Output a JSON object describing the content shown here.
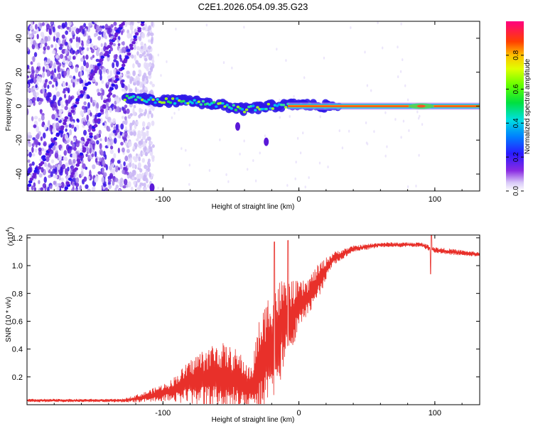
{
  "title": "C2E1.2026.054.09.35.G23",
  "chart_data": [
    {
      "type": "heatmap",
      "title": "C2E1.2026.054.09.35.G23",
      "xlabel": "Height of straight line (km)",
      "ylabel": "Frequency (Hz)",
      "xlim": [
        -200,
        133
      ],
      "ylim": [
        -50,
        50
      ],
      "xticks": [
        -100,
        0,
        100
      ],
      "xtick_labels": [
        "-100",
        "0",
        "100"
      ],
      "yticks": [
        -40,
        -20,
        0,
        20,
        40
      ],
      "ytick_labels": [
        "-40",
        "-20",
        "0",
        "20",
        "40"
      ],
      "colorbar": {
        "label": "Normalized spectral amplitude",
        "range": [
          0,
          1
        ],
        "ticks": [
          0.0,
          0.2,
          0.4,
          0.6,
          0.8
        ],
        "tick_labels": [
          "0.0",
          "0.2",
          "0.4",
          "0.6",
          "0.8"
        ]
      },
      "features": {
        "carrier_line": {
          "frequency_hz": 0,
          "start_km": -128,
          "end_km": 133
        },
        "diagonal_streaks": [
          {
            "from_km": -200,
            "to_km": -123,
            "from_hz": -48,
            "to_hz": 58
          },
          {
            "from_km": -178,
            "to_km": -110,
            "from_hz": -60,
            "to_hz": 58
          }
        ],
        "noise_region_km": [
          -200,
          -107
        ],
        "satellite_blobs": [
          {
            "km": -45,
            "hz": -12
          },
          {
            "km": -24,
            "hz": -21
          },
          {
            "km": -108,
            "hz": -48
          }
        ],
        "spectral_trace": [
          {
            "km": -128,
            "hz": 5
          },
          {
            "km": -100,
            "hz": 3
          },
          {
            "km": -80,
            "hz": 3
          },
          {
            "km": -60,
            "hz": 1
          },
          {
            "km": -40,
            "hz": -2
          },
          {
            "km": -20,
            "hz": 0
          },
          {
            "km": 0,
            "hz": 1
          },
          {
            "km": 20,
            "hz": 0
          },
          {
            "km": 133,
            "hz": 0
          }
        ]
      }
    },
    {
      "type": "line",
      "xlabel": "Height of straight line (km)",
      "ylabel": "SNR (10 * v/v)",
      "scale_label": "(x10",
      "scale_exponent": "4",
      "xlim": [
        -200,
        133
      ],
      "ylim": [
        0,
        1.22
      ],
      "xticks": [
        -100,
        0,
        100
      ],
      "xtick_labels": [
        "-100",
        "0",
        "100"
      ],
      "yticks": [
        0.2,
        0.4,
        0.6,
        0.8,
        1.0,
        1.2
      ],
      "ytick_labels": [
        "0.2",
        "0.4",
        "0.6",
        "0.8",
        "1.0",
        "1.2"
      ],
      "color": "#e8302a",
      "envelope": [
        {
          "km": -200,
          "mean": 0.03,
          "spread": 0.01
        },
        {
          "km": -130,
          "mean": 0.03,
          "spread": 0.01
        },
        {
          "km": -115,
          "mean": 0.05,
          "spread": 0.03
        },
        {
          "km": -95,
          "mean": 0.1,
          "spread": 0.06
        },
        {
          "km": -75,
          "mean": 0.18,
          "spread": 0.16
        },
        {
          "km": -60,
          "mean": 0.2,
          "spread": 0.22
        },
        {
          "km": -45,
          "mean": 0.18,
          "spread": 0.18
        },
        {
          "km": -35,
          "mean": 0.12,
          "spread": 0.12
        },
        {
          "km": -30,
          "mean": 0.25,
          "spread": 0.28
        },
        {
          "km": -20,
          "mean": 0.45,
          "spread": 0.35
        },
        {
          "km": -12,
          "mean": 0.55,
          "spread": 0.3
        },
        {
          "km": -5,
          "mean": 0.65,
          "spread": 0.2
        },
        {
          "km": 5,
          "mean": 0.75,
          "spread": 0.12
        },
        {
          "km": 15,
          "mean": 0.9,
          "spread": 0.1
        },
        {
          "km": 25,
          "mean": 1.05,
          "spread": 0.04
        },
        {
          "km": 40,
          "mean": 1.12,
          "spread": 0.02
        },
        {
          "km": 60,
          "mean": 1.15,
          "spread": 0.015
        },
        {
          "km": 90,
          "mean": 1.15,
          "spread": 0.015
        },
        {
          "km": 100,
          "mean": 1.11,
          "spread": 0.02
        },
        {
          "km": 133,
          "mean": 1.08,
          "spread": 0.015
        }
      ],
      "spikes": [
        {
          "km": -8,
          "value": 1.18
        },
        {
          "km": -18,
          "value": 1.17
        },
        {
          "km": 97,
          "value": 0.94
        },
        {
          "km": 97.5,
          "value": 1.22
        }
      ]
    }
  ]
}
